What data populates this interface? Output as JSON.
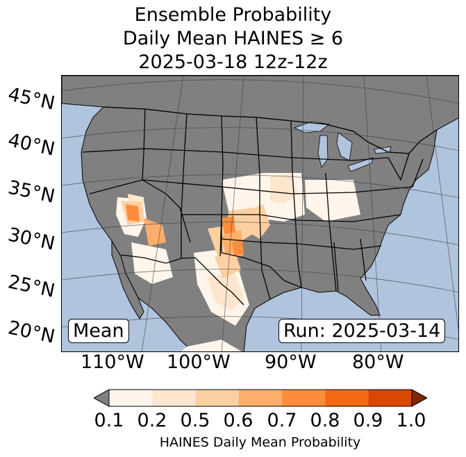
{
  "title": {
    "line1": "Ensemble Probability",
    "line2": "Daily Mean HAINES ≥ 6",
    "line3": "2025-03-18 12z-12z"
  },
  "map": {
    "lat_labels": [
      "45°N",
      "40°N",
      "35°N",
      "30°N",
      "25°N",
      "20°N"
    ],
    "lon_labels": [
      "110°W",
      "100°W",
      "90°W",
      "80°W"
    ],
    "stat_badge": "Mean",
    "run_badge": "Run: 2025-03-14",
    "colors": {
      "ocean": "#b0c4de",
      "land": "#808080",
      "border": "#000000",
      "grid": "#3a3a3a"
    }
  },
  "colorbar": {
    "label": "HAINES Daily Mean Probability",
    "ticks": [
      "0.1",
      "0.2",
      "0.5",
      "0.6",
      "0.7",
      "0.8",
      "0.9",
      "1.0"
    ],
    "under_color": "#808080",
    "over_color": "#7f2704",
    "bin_colors": [
      "#fff5eb",
      "#fee6ce",
      "#fdd0a2",
      "#fdae6b",
      "#fd8d3c",
      "#f16913",
      "#d94801"
    ]
  }
}
